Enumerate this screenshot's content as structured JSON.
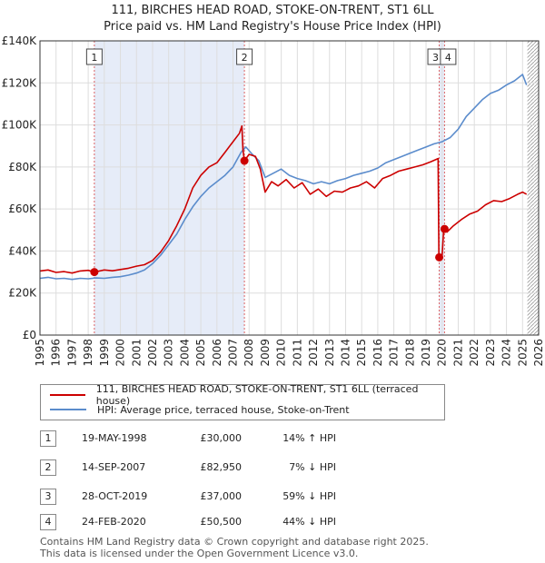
{
  "title_line1": "111, BIRCHES HEAD ROAD, STOKE-ON-TRENT, ST1 6LL",
  "title_line2": "Price paid vs. HM Land Registry's House Price Index (HPI)",
  "chart_data": {
    "type": "line",
    "xlim": [
      1995,
      2026
    ],
    "ylim": [
      0,
      140000
    ],
    "y_ticks": [
      {
        "value": 0,
        "label": "£0"
      },
      {
        "value": 20000,
        "label": "£20K"
      },
      {
        "value": 40000,
        "label": "£40K"
      },
      {
        "value": 60000,
        "label": "£60K"
      },
      {
        "value": 80000,
        "label": "£80K"
      },
      {
        "value": 100000,
        "label": "£100K"
      },
      {
        "value": 120000,
        "label": "£120K"
      },
      {
        "value": 140000,
        "label": "£140K"
      }
    ],
    "x_ticks": [
      "1995",
      "1996",
      "1997",
      "1998",
      "1999",
      "2000",
      "2001",
      "2002",
      "2003",
      "2004",
      "2005",
      "2006",
      "2007",
      "2008",
      "2009",
      "2010",
      "2011",
      "2012",
      "2013",
      "2014",
      "2015",
      "2016",
      "2017",
      "2018",
      "2019",
      "2020",
      "2021",
      "2022",
      "2023",
      "2024",
      "2025",
      "2026"
    ],
    "grid": true,
    "series": [
      {
        "name": "111, BIRCHES HEAD ROAD, STOKE-ON-TRENT, ST1 6LL (terraced house)",
        "color": "#cc0000",
        "points": [
          [
            1995.0,
            30500
          ],
          [
            1995.5,
            31000
          ],
          [
            1996.0,
            29800
          ],
          [
            1996.5,
            30200
          ],
          [
            1997.0,
            29500
          ],
          [
            1997.5,
            30500
          ],
          [
            1998.0,
            30800
          ],
          [
            1998.38,
            30000
          ],
          [
            1999.0,
            31000
          ],
          [
            1999.5,
            30600
          ],
          [
            2000.0,
            31200
          ],
          [
            2000.5,
            31800
          ],
          [
            2001.0,
            32800
          ],
          [
            2001.5,
            33500
          ],
          [
            2002.0,
            35500
          ],
          [
            2002.5,
            39500
          ],
          [
            2003.0,
            45000
          ],
          [
            2003.5,
            52000
          ],
          [
            2004.0,
            60000
          ],
          [
            2004.5,
            70000
          ],
          [
            2005.0,
            76000
          ],
          [
            2005.5,
            80000
          ],
          [
            2006.0,
            82000
          ],
          [
            2006.5,
            87000
          ],
          [
            2007.0,
            92000
          ],
          [
            2007.4,
            96000
          ],
          [
            2007.55,
            99500
          ],
          [
            2007.62,
            88000
          ],
          [
            2007.71,
            82950
          ],
          [
            2008.0,
            86000
          ],
          [
            2008.4,
            85000
          ],
          [
            2008.7,
            79000
          ],
          [
            2009.0,
            68000
          ],
          [
            2009.4,
            73000
          ],
          [
            2009.8,
            71000
          ],
          [
            2010.3,
            74000
          ],
          [
            2010.8,
            70000
          ],
          [
            2011.3,
            72500
          ],
          [
            2011.8,
            67000
          ],
          [
            2012.3,
            69500
          ],
          [
            2012.8,
            66000
          ],
          [
            2013.3,
            68500
          ],
          [
            2013.8,
            68000
          ],
          [
            2014.3,
            70000
          ],
          [
            2014.8,
            71000
          ],
          [
            2015.3,
            73000
          ],
          [
            2015.8,
            70000
          ],
          [
            2016.3,
            74500
          ],
          [
            2016.8,
            76000
          ],
          [
            2017.3,
            78000
          ],
          [
            2017.8,
            79000
          ],
          [
            2018.3,
            80000
          ],
          [
            2018.8,
            81000
          ],
          [
            2019.3,
            82500
          ],
          [
            2019.75,
            84000
          ],
          [
            2019.8,
            36500
          ],
          [
            2019.82,
            37000
          ],
          [
            2020.0,
            37500
          ],
          [
            2020.1,
            50500
          ],
          [
            2020.3,
            49000
          ],
          [
            2020.7,
            52000
          ],
          [
            2021.2,
            55000
          ],
          [
            2021.7,
            57500
          ],
          [
            2022.2,
            59000
          ],
          [
            2022.7,
            62000
          ],
          [
            2023.2,
            64000
          ],
          [
            2023.7,
            63500
          ],
          [
            2024.2,
            65000
          ],
          [
            2024.7,
            67000
          ],
          [
            2025.0,
            68000
          ],
          [
            2025.25,
            67000
          ]
        ]
      },
      {
        "name": "HPI: Average price, terraced house, Stoke-on-Trent",
        "color": "#5b8ccc",
        "points": [
          [
            1995.0,
            27000
          ],
          [
            1995.5,
            27500
          ],
          [
            1996.0,
            26800
          ],
          [
            1996.5,
            27000
          ],
          [
            1997.0,
            26500
          ],
          [
            1997.5,
            27000
          ],
          [
            1998.0,
            26800
          ],
          [
            1998.5,
            27200
          ],
          [
            1999.0,
            27000
          ],
          [
            1999.5,
            27500
          ],
          [
            2000.0,
            27800
          ],
          [
            2000.5,
            28500
          ],
          [
            2001.0,
            29500
          ],
          [
            2001.5,
            31000
          ],
          [
            2002.0,
            34000
          ],
          [
            2002.5,
            38000
          ],
          [
            2003.0,
            43000
          ],
          [
            2003.5,
            48000
          ],
          [
            2004.0,
            55000
          ],
          [
            2004.5,
            61000
          ],
          [
            2005.0,
            66000
          ],
          [
            2005.5,
            70000
          ],
          [
            2006.0,
            73000
          ],
          [
            2006.5,
            76000
          ],
          [
            2007.0,
            80000
          ],
          [
            2007.5,
            87000
          ],
          [
            2007.8,
            89500
          ],
          [
            2008.2,
            86000
          ],
          [
            2008.6,
            83000
          ],
          [
            2009.0,
            75000
          ],
          [
            2009.5,
            77000
          ],
          [
            2010.0,
            79000
          ],
          [
            2010.5,
            76000
          ],
          [
            2011.0,
            74500
          ],
          [
            2011.5,
            73500
          ],
          [
            2012.0,
            72000
          ],
          [
            2012.5,
            73000
          ],
          [
            2013.0,
            72000
          ],
          [
            2013.5,
            73500
          ],
          [
            2014.0,
            74500
          ],
          [
            2014.5,
            76000
          ],
          [
            2015.0,
            77000
          ],
          [
            2015.5,
            78000
          ],
          [
            2016.0,
            79500
          ],
          [
            2016.5,
            82000
          ],
          [
            2017.0,
            83500
          ],
          [
            2017.5,
            85000
          ],
          [
            2018.0,
            86500
          ],
          [
            2018.5,
            88000
          ],
          [
            2019.0,
            89500
          ],
          [
            2019.5,
            91000
          ],
          [
            2020.0,
            92000
          ],
          [
            2020.5,
            94000
          ],
          [
            2021.0,
            98000
          ],
          [
            2021.5,
            104000
          ],
          [
            2022.0,
            108000
          ],
          [
            2022.5,
            112000
          ],
          [
            2023.0,
            115000
          ],
          [
            2023.5,
            116500
          ],
          [
            2024.0,
            119000
          ],
          [
            2024.5,
            121000
          ],
          [
            2025.0,
            124000
          ],
          [
            2025.25,
            119000
          ]
        ]
      }
    ],
    "markers": [
      {
        "label": "1",
        "x": 1998.38,
        "y": 30000
      },
      {
        "label": "2",
        "x": 2007.71,
        "y": 82950
      },
      {
        "label": "3",
        "x": 2019.82,
        "y": 37000
      },
      {
        "label": "4",
        "x": 2020.15,
        "y": 50500
      }
    ],
    "shaded_regions": [
      [
        1998.38,
        2007.71
      ],
      [
        2019.82,
        2020.15
      ]
    ],
    "hatched_region": [
      2025.3,
      2026
    ]
  },
  "legend": {
    "property_label": "111, BIRCHES HEAD ROAD, STOKE-ON-TRENT, ST1 6LL (terraced house)",
    "hpi_label": "HPI: Average price, terraced house, Stoke-on-Trent",
    "property_color": "#cc0000",
    "hpi_color": "#5b8ccc"
  },
  "transactions": [
    {
      "num": "1",
      "date": "19-MAY-1998",
      "price": "£30,000",
      "hpi": "14% ↑ HPI"
    },
    {
      "num": "2",
      "date": "14-SEP-2007",
      "price": "£82,950",
      "hpi": "7% ↓ HPI"
    },
    {
      "num": "3",
      "date": "28-OCT-2019",
      "price": "£37,000",
      "hpi": "59% ↓ HPI"
    },
    {
      "num": "4",
      "date": "24-FEB-2020",
      "price": "£50,500",
      "hpi": "44% ↓ HPI"
    }
  ],
  "footer": {
    "line1": "Contains HM Land Registry data © Crown copyright and database right 2025.",
    "line2": "This data is licensed under the Open Government Licence v3.0."
  }
}
